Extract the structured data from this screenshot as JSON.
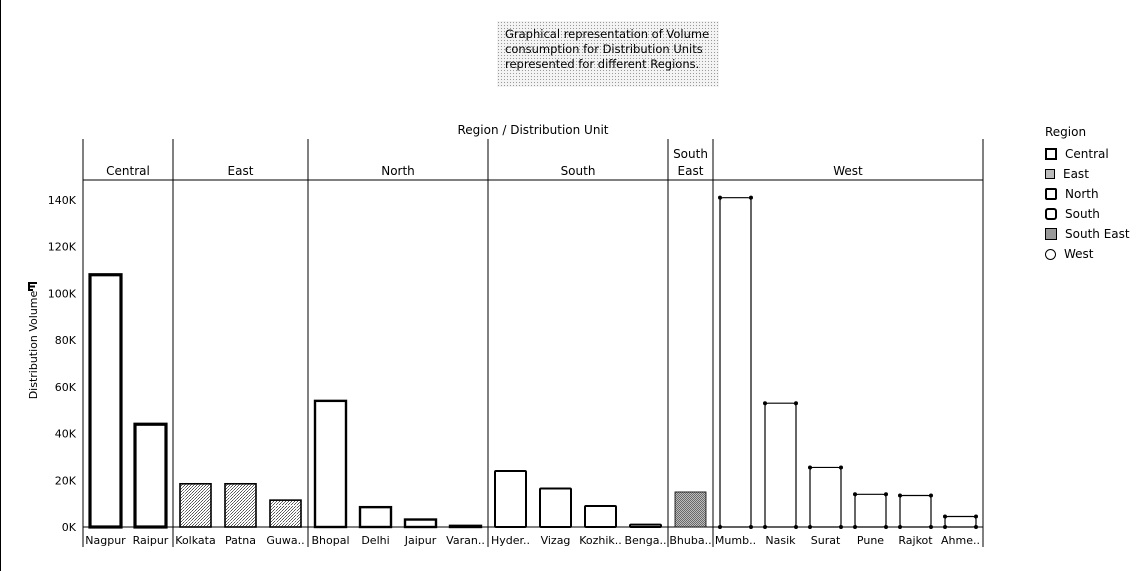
{
  "title_lines": [
    "Graphical representation of Volume",
    "consumption for Distribution Units",
    "represented for different Regions."
  ],
  "chart_data": {
    "type": "bar",
    "title": "Graphical representation of Volume consumption for Distribution Units represented for different Regions.",
    "column_header": "Region / Distribution Unit",
    "ylabel": "Distribution Volume",
    "ylim": [
      0,
      150000
    ],
    "yticks": [
      0,
      20000,
      40000,
      60000,
      80000,
      100000,
      120000,
      140000
    ],
    "ytick_labels": [
      "0K",
      "20K",
      "40K",
      "60K",
      "80K",
      "100K",
      "120K",
      "140K"
    ],
    "grid": false,
    "legend_title": "Region",
    "legend_position": "right",
    "regions": [
      {
        "name": "Central",
        "label_lines": [
          "Central"
        ],
        "color": "#000000",
        "units": [
          {
            "label": "Nagpur",
            "value": 108000
          },
          {
            "label": "Raipur",
            "value": 44000
          }
        ]
      },
      {
        "name": "East",
        "label_lines": [
          "East"
        ],
        "color": "#8a8a8a",
        "units": [
          {
            "label": "Kolkata",
            "value": 18500
          },
          {
            "label": "Patna",
            "value": 18500
          },
          {
            "label": "Guwa..",
            "value": 11500
          }
        ]
      },
      {
        "name": "North",
        "label_lines": [
          "North"
        ],
        "color": "#000000",
        "units": [
          {
            "label": "Bhopal",
            "value": 54000
          },
          {
            "label": "Delhi",
            "value": 8500
          },
          {
            "label": "Jaipur",
            "value": 3200
          },
          {
            "label": "Varan..",
            "value": 500
          }
        ]
      },
      {
        "name": "South",
        "label_lines": [
          "South"
        ],
        "color": "#000000",
        "units": [
          {
            "label": "Hyder..",
            "value": 24000
          },
          {
            "label": "Vizag",
            "value": 16500
          },
          {
            "label": "Kozhik..",
            "value": 9000
          },
          {
            "label": "Benga..",
            "value": 1000
          }
        ]
      },
      {
        "name": "South East",
        "label_lines": [
          "South",
          "East"
        ],
        "color": "#9a9a9a",
        "units": [
          {
            "label": "Bhuba..",
            "value": 15000
          }
        ]
      },
      {
        "name": "West",
        "label_lines": [
          "West"
        ],
        "color": "#000000",
        "units": [
          {
            "label": "Mumb..",
            "value": 141000
          },
          {
            "label": "Nasik",
            "value": 53000
          },
          {
            "label": "Surat",
            "value": 25500
          },
          {
            "label": "Pune",
            "value": 14000
          },
          {
            "label": "Rajkot",
            "value": 13500
          },
          {
            "label": "Ahme..",
            "value": 4500
          }
        ]
      }
    ],
    "legend_items": [
      "Central",
      "East",
      "North",
      "South",
      "South East",
      "West"
    ]
  }
}
